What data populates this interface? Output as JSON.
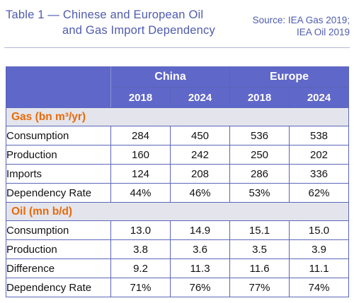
{
  "header": {
    "title_line1": "Table 1 — Chinese and European Oil",
    "title_line2": "and Gas Import Dependency",
    "source_line1": "Source: IEA Gas 2019;",
    "source_line2": "IEA Oil 2019"
  },
  "table": {
    "groups": [
      "China",
      "Europe"
    ],
    "years": [
      "2018",
      "2024",
      "2018",
      "2024"
    ],
    "sections": [
      {
        "title": "Gas (bn m³/yr)",
        "rows": [
          {
            "label": "Consumption",
            "values": [
              "284",
              "450",
              "536",
              "538"
            ]
          },
          {
            "label": "Production",
            "values": [
              "160",
              "242",
              "250",
              "202"
            ]
          },
          {
            "label": "Imports",
            "values": [
              "124",
              "208",
              "286",
              "336"
            ]
          },
          {
            "label": "Dependency Rate",
            "values": [
              "44%",
              "46%",
              "53%",
              "62%"
            ]
          }
        ]
      },
      {
        "title": "Oil (mn b/d)",
        "rows": [
          {
            "label": "Consumption",
            "values": [
              "13.0",
              "14.9",
              "15.1",
              "15.0"
            ]
          },
          {
            "label": "Production",
            "values": [
              "3.8",
              "3.6",
              "3.5",
              "3.9"
            ]
          },
          {
            "label": "Difference",
            "values": [
              "9.2",
              "11.3",
              "11.6",
              "11.1"
            ]
          },
          {
            "label": "Dependency Rate",
            "values": [
              "71%",
              "76%",
              "77%",
              "74%"
            ]
          }
        ]
      }
    ]
  },
  "colors": {
    "title": "#4f5bb0",
    "header_fill": "#5f67c9",
    "section_text": "#e86a08",
    "section_fill": "#e4e5ec",
    "border": "#5b66b8"
  }
}
